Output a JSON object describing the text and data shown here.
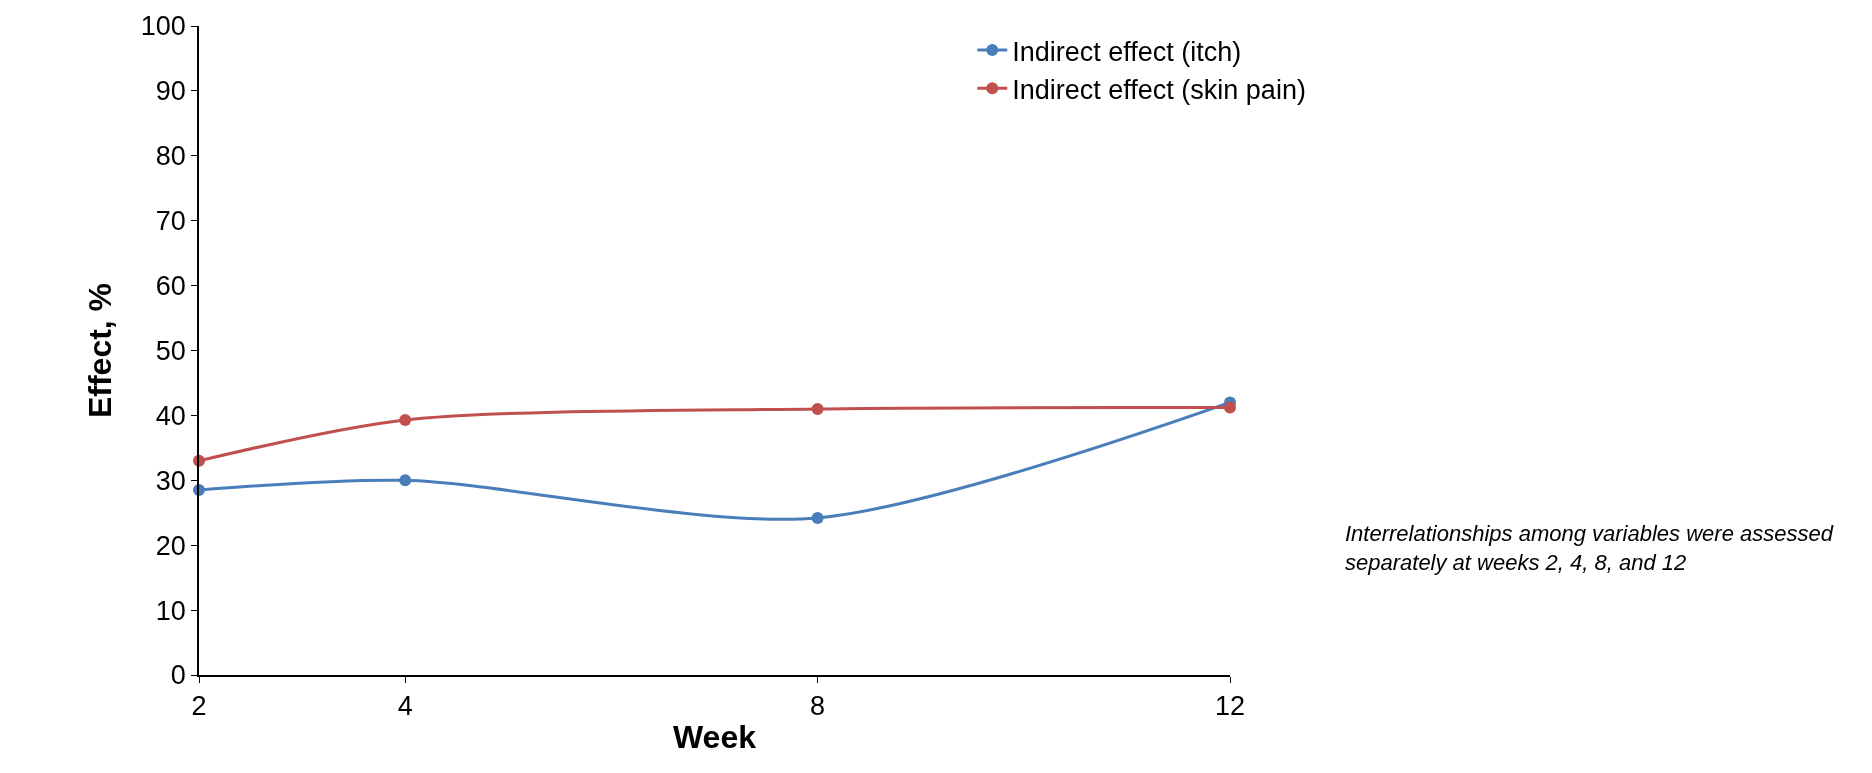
{
  "chart_data": {
    "type": "line",
    "xlabel": "Week",
    "ylabel": "Effect, %",
    "x": [
      2,
      4,
      8,
      12
    ],
    "series": [
      {
        "name": "Indirect effect (itch)",
        "color": "#4a7ebb",
        "values": [
          28.5,
          30,
          24.2,
          42
        ]
      },
      {
        "name": "Indirect effect (skin pain)",
        "color": "#c0504d",
        "values": [
          33,
          39.3,
          41,
          41.2
        ]
      }
    ],
    "xlim": [
      2,
      12
    ],
    "xticks": [
      2,
      4,
      8,
      12
    ],
    "ylim": [
      0,
      100
    ],
    "yticks": [
      0,
      10,
      20,
      30,
      40,
      50,
      60,
      70,
      80,
      90,
      100
    ],
    "grid": false,
    "legend": "top right",
    "marker": "circle",
    "line_style": "solid",
    "annotations": [
      "Interrelationships among variables were assessed separately at weeks 2, 4, 8, and 12"
    ]
  }
}
